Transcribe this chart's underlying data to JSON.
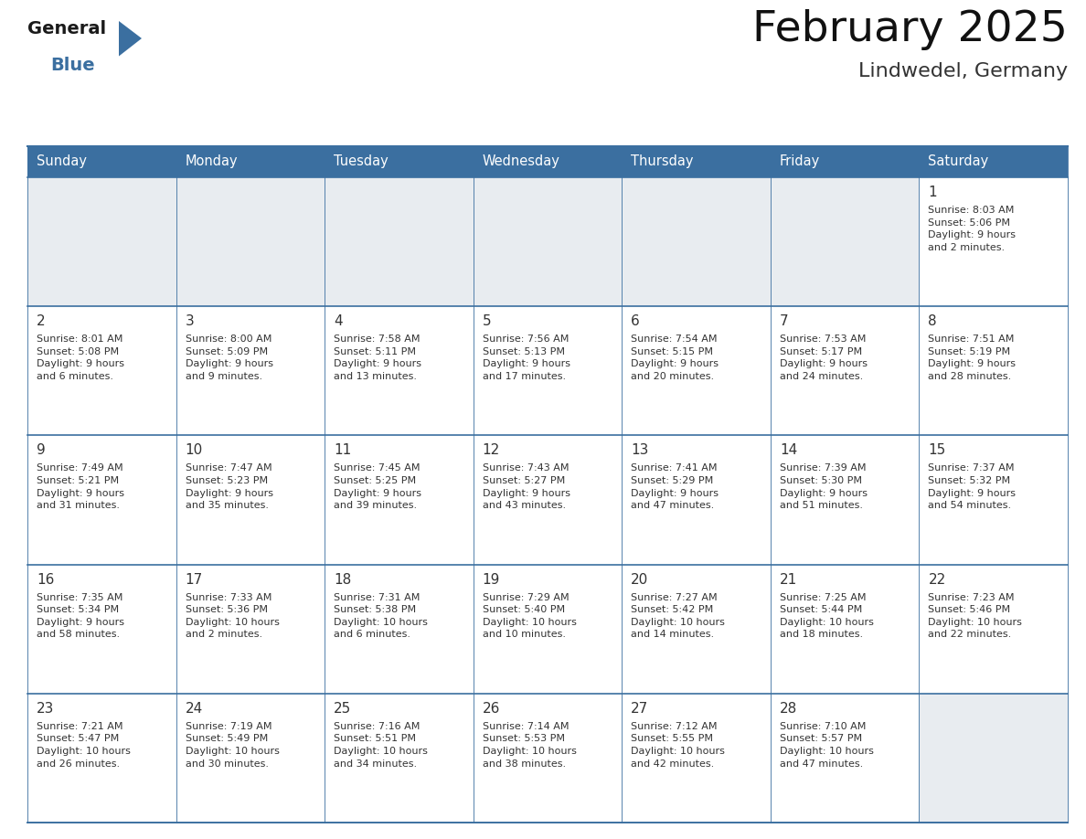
{
  "title": "February 2025",
  "subtitle": "Lindwedel, Germany",
  "header_bg": "#3b6fa0",
  "header_text_color": "#ffffff",
  "cell_bg_gray": "#e8ecf0",
  "cell_bg_white": "#ffffff",
  "border_color": "#3b6fa0",
  "row_divider_color": "#3b6fa0",
  "text_color": "#333333",
  "days_of_week": [
    "Sunday",
    "Monday",
    "Tuesday",
    "Wednesday",
    "Thursday",
    "Friday",
    "Saturday"
  ],
  "weeks": [
    [
      {
        "day": null,
        "info": null
      },
      {
        "day": null,
        "info": null
      },
      {
        "day": null,
        "info": null
      },
      {
        "day": null,
        "info": null
      },
      {
        "day": null,
        "info": null
      },
      {
        "day": null,
        "info": null
      },
      {
        "day": 1,
        "info": "Sunrise: 8:03 AM\nSunset: 5:06 PM\nDaylight: 9 hours\nand 2 minutes."
      }
    ],
    [
      {
        "day": 2,
        "info": "Sunrise: 8:01 AM\nSunset: 5:08 PM\nDaylight: 9 hours\nand 6 minutes."
      },
      {
        "day": 3,
        "info": "Sunrise: 8:00 AM\nSunset: 5:09 PM\nDaylight: 9 hours\nand 9 minutes."
      },
      {
        "day": 4,
        "info": "Sunrise: 7:58 AM\nSunset: 5:11 PM\nDaylight: 9 hours\nand 13 minutes."
      },
      {
        "day": 5,
        "info": "Sunrise: 7:56 AM\nSunset: 5:13 PM\nDaylight: 9 hours\nand 17 minutes."
      },
      {
        "day": 6,
        "info": "Sunrise: 7:54 AM\nSunset: 5:15 PM\nDaylight: 9 hours\nand 20 minutes."
      },
      {
        "day": 7,
        "info": "Sunrise: 7:53 AM\nSunset: 5:17 PM\nDaylight: 9 hours\nand 24 minutes."
      },
      {
        "day": 8,
        "info": "Sunrise: 7:51 AM\nSunset: 5:19 PM\nDaylight: 9 hours\nand 28 minutes."
      }
    ],
    [
      {
        "day": 9,
        "info": "Sunrise: 7:49 AM\nSunset: 5:21 PM\nDaylight: 9 hours\nand 31 minutes."
      },
      {
        "day": 10,
        "info": "Sunrise: 7:47 AM\nSunset: 5:23 PM\nDaylight: 9 hours\nand 35 minutes."
      },
      {
        "day": 11,
        "info": "Sunrise: 7:45 AM\nSunset: 5:25 PM\nDaylight: 9 hours\nand 39 minutes."
      },
      {
        "day": 12,
        "info": "Sunrise: 7:43 AM\nSunset: 5:27 PM\nDaylight: 9 hours\nand 43 minutes."
      },
      {
        "day": 13,
        "info": "Sunrise: 7:41 AM\nSunset: 5:29 PM\nDaylight: 9 hours\nand 47 minutes."
      },
      {
        "day": 14,
        "info": "Sunrise: 7:39 AM\nSunset: 5:30 PM\nDaylight: 9 hours\nand 51 minutes."
      },
      {
        "day": 15,
        "info": "Sunrise: 7:37 AM\nSunset: 5:32 PM\nDaylight: 9 hours\nand 54 minutes."
      }
    ],
    [
      {
        "day": 16,
        "info": "Sunrise: 7:35 AM\nSunset: 5:34 PM\nDaylight: 9 hours\nand 58 minutes."
      },
      {
        "day": 17,
        "info": "Sunrise: 7:33 AM\nSunset: 5:36 PM\nDaylight: 10 hours\nand 2 minutes."
      },
      {
        "day": 18,
        "info": "Sunrise: 7:31 AM\nSunset: 5:38 PM\nDaylight: 10 hours\nand 6 minutes."
      },
      {
        "day": 19,
        "info": "Sunrise: 7:29 AM\nSunset: 5:40 PM\nDaylight: 10 hours\nand 10 minutes."
      },
      {
        "day": 20,
        "info": "Sunrise: 7:27 AM\nSunset: 5:42 PM\nDaylight: 10 hours\nand 14 minutes."
      },
      {
        "day": 21,
        "info": "Sunrise: 7:25 AM\nSunset: 5:44 PM\nDaylight: 10 hours\nand 18 minutes."
      },
      {
        "day": 22,
        "info": "Sunrise: 7:23 AM\nSunset: 5:46 PM\nDaylight: 10 hours\nand 22 minutes."
      }
    ],
    [
      {
        "day": 23,
        "info": "Sunrise: 7:21 AM\nSunset: 5:47 PM\nDaylight: 10 hours\nand 26 minutes."
      },
      {
        "day": 24,
        "info": "Sunrise: 7:19 AM\nSunset: 5:49 PM\nDaylight: 10 hours\nand 30 minutes."
      },
      {
        "day": 25,
        "info": "Sunrise: 7:16 AM\nSunset: 5:51 PM\nDaylight: 10 hours\nand 34 minutes."
      },
      {
        "day": 26,
        "info": "Sunrise: 7:14 AM\nSunset: 5:53 PM\nDaylight: 10 hours\nand 38 minutes."
      },
      {
        "day": 27,
        "info": "Sunrise: 7:12 AM\nSunset: 5:55 PM\nDaylight: 10 hours\nand 42 minutes."
      },
      {
        "day": 28,
        "info": "Sunrise: 7:10 AM\nSunset: 5:57 PM\nDaylight: 10 hours\nand 47 minutes."
      },
      {
        "day": null,
        "info": null
      }
    ]
  ],
  "logo_general_color": "#1a1a1a",
  "logo_blue_color": "#3b6fa0",
  "logo_triangle_color": "#3b6fa0",
  "title_color": "#111111",
  "subtitle_color": "#333333"
}
